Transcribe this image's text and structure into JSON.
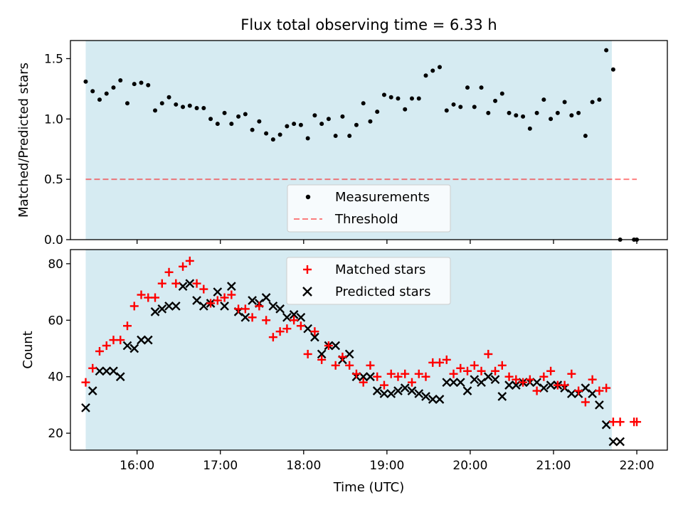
{
  "chart_data": [
    {
      "type": "scatter",
      "title": "Flux total observing time = 6.33 h",
      "xlabel": "",
      "ylabel": "Matched/Predicted stars",
      "xlim": [
        "15:12",
        "22:22"
      ],
      "ylim": [
        0,
        1.65
      ],
      "yticks": [
        "0.0",
        "0.5",
        "1.0",
        "1.5"
      ],
      "observing_window": [
        "15:23",
        "21:42"
      ],
      "colors": {
        "window": "#add8e6",
        "measurements": "#000000",
        "threshold": "#ff0000"
      },
      "legend": {
        "position": "lower center",
        "entries": [
          "Measurements",
          "Threshold"
        ]
      },
      "series": [
        {
          "name": "Measurements",
          "marker": "dot",
          "x": [
            "15:23",
            "15:28",
            "15:33",
            "15:38",
            "15:43",
            "15:48",
            "15:53",
            "15:58",
            "16:03",
            "16:08",
            "16:13",
            "16:18",
            "16:23",
            "16:28",
            "16:33",
            "16:38",
            "16:43",
            "16:48",
            "16:53",
            "16:58",
            "17:03",
            "17:08",
            "17:13",
            "17:18",
            "17:23",
            "17:28",
            "17:33",
            "17:38",
            "17:43",
            "17:48",
            "17:53",
            "17:58",
            "18:03",
            "18:08",
            "18:13",
            "18:18",
            "18:23",
            "18:28",
            "18:33",
            "18:38",
            "18:43",
            "18:48",
            "18:53",
            "18:58",
            "19:03",
            "19:08",
            "19:13",
            "19:18",
            "19:23",
            "19:28",
            "19:33",
            "19:38",
            "19:43",
            "19:48",
            "19:53",
            "19:58",
            "20:03",
            "20:08",
            "20:13",
            "20:18",
            "20:23",
            "20:28",
            "20:33",
            "20:38",
            "20:43",
            "20:48",
            "20:53",
            "20:58",
            "21:03",
            "21:08",
            "21:13",
            "21:18",
            "21:23",
            "21:28",
            "21:33",
            "21:38",
            "21:43",
            "21:48",
            "21:58",
            "22:00"
          ],
          "y": [
            1.31,
            1.23,
            1.16,
            1.21,
            1.26,
            1.32,
            1.13,
            1.29,
            1.3,
            1.28,
            1.07,
            1.13,
            1.18,
            1.12,
            1.1,
            1.11,
            1.09,
            1.09,
            1.0,
            0.96,
            1.05,
            0.96,
            1.02,
            1.04,
            0.91,
            0.98,
            0.88,
            0.83,
            0.87,
            0.94,
            0.96,
            0.95,
            0.84,
            1.03,
            0.96,
            1.0,
            0.86,
            1.02,
            0.86,
            0.95,
            1.13,
            0.98,
            1.06,
            1.2,
            1.18,
            1.17,
            1.08,
            1.17,
            1.17,
            1.36,
            1.4,
            1.43,
            1.07,
            1.12,
            1.1,
            1.26,
            1.1,
            1.26,
            1.05,
            1.15,
            1.21,
            1.05,
            1.03,
            1.02,
            0.92,
            1.05,
            1.16,
            1.0,
            1.05,
            1.14,
            1.03,
            1.05,
            0.86,
            1.14,
            1.16,
            1.57,
            1.41,
            0.0,
            0.0,
            0.0
          ]
        },
        {
          "name": "Threshold",
          "marker": "dashed-line",
          "x": [
            "15:23",
            "22:00"
          ],
          "y": [
            0.5,
            0.5
          ]
        }
      ]
    },
    {
      "type": "scatter",
      "title": "",
      "xlabel": "Time (UTC)",
      "ylabel": "Count",
      "xlim": [
        "15:12",
        "22:22"
      ],
      "ylim": [
        14,
        85
      ],
      "xticks": [
        "16:00",
        "17:00",
        "18:00",
        "19:00",
        "20:00",
        "21:00",
        "22:00"
      ],
      "yticks": [
        "20",
        "40",
        "60",
        "80"
      ],
      "observing_window": [
        "15:23",
        "21:42"
      ],
      "colors": {
        "window": "#add8e6",
        "matched": "#ff0000",
        "predicted": "#000000"
      },
      "legend": {
        "position": "upper center",
        "entries": [
          "Matched stars",
          "Predicted stars"
        ]
      },
      "series": [
        {
          "name": "Matched stars",
          "marker": "plus",
          "x": [
            "15:23",
            "15:28",
            "15:33",
            "15:38",
            "15:43",
            "15:48",
            "15:53",
            "15:58",
            "16:03",
            "16:08",
            "16:13",
            "16:18",
            "16:23",
            "16:28",
            "16:33",
            "16:38",
            "16:43",
            "16:48",
            "16:53",
            "16:58",
            "17:03",
            "17:08",
            "17:13",
            "17:18",
            "17:23",
            "17:28",
            "17:33",
            "17:38",
            "17:43",
            "17:48",
            "17:53",
            "17:58",
            "18:03",
            "18:08",
            "18:13",
            "18:18",
            "18:23",
            "18:28",
            "18:33",
            "18:38",
            "18:43",
            "18:48",
            "18:53",
            "18:58",
            "19:03",
            "19:08",
            "19:13",
            "19:18",
            "19:23",
            "19:28",
            "19:33",
            "19:38",
            "19:43",
            "19:48",
            "19:53",
            "19:58",
            "20:03",
            "20:08",
            "20:13",
            "20:18",
            "20:23",
            "20:28",
            "20:33",
            "20:38",
            "20:43",
            "20:48",
            "20:53",
            "20:58",
            "21:03",
            "21:08",
            "21:13",
            "21:18",
            "21:23",
            "21:28",
            "21:33",
            "21:38",
            "21:43",
            "21:48",
            "21:58",
            "22:00"
          ],
          "y": [
            38,
            43,
            49,
            51,
            53,
            53,
            58,
            65,
            69,
            68,
            68,
            73,
            77,
            73,
            79,
            81,
            73,
            71,
            66,
            67,
            68,
            69,
            64,
            64,
            61,
            65,
            60,
            54,
            56,
            57,
            60,
            58,
            48,
            56,
            46,
            51,
            44,
            47,
            44,
            41,
            38,
            44,
            40,
            37,
            41,
            40,
            41,
            38,
            41,
            40,
            45,
            45,
            46,
            41,
            43,
            42,
            44,
            42,
            48,
            42,
            44,
            40,
            39,
            38,
            39,
            35,
            40,
            42,
            37,
            37,
            41,
            35,
            31,
            39,
            35,
            36,
            24,
            24,
            24,
            24
          ]
        },
        {
          "name": "Predicted stars",
          "marker": "x",
          "x": [
            "15:23",
            "15:28",
            "15:33",
            "15:38",
            "15:43",
            "15:48",
            "15:53",
            "15:58",
            "16:03",
            "16:08",
            "16:13",
            "16:18",
            "16:23",
            "16:28",
            "16:33",
            "16:38",
            "16:43",
            "16:48",
            "16:53",
            "16:58",
            "17:03",
            "17:08",
            "17:13",
            "17:18",
            "17:23",
            "17:28",
            "17:33",
            "17:38",
            "17:43",
            "17:48",
            "17:53",
            "17:58",
            "18:03",
            "18:08",
            "18:13",
            "18:18",
            "18:23",
            "18:28",
            "18:33",
            "18:38",
            "18:43",
            "18:48",
            "18:53",
            "18:58",
            "19:03",
            "19:08",
            "19:13",
            "19:18",
            "19:23",
            "19:28",
            "19:33",
            "19:38",
            "19:43",
            "19:48",
            "19:53",
            "19:58",
            "20:03",
            "20:08",
            "20:13",
            "20:18",
            "20:23",
            "20:28",
            "20:33",
            "20:38",
            "20:43",
            "20:48",
            "20:53",
            "20:58",
            "21:03",
            "21:08",
            "21:13",
            "21:18",
            "21:23",
            "21:28",
            "21:33",
            "21:38",
            "21:43",
            "21:48"
          ],
          "y": [
            29,
            35,
            42,
            42,
            42,
            40,
            51,
            50,
            53,
            53,
            63,
            64,
            65,
            65,
            72,
            73,
            67,
            65,
            66,
            70,
            65,
            72,
            63,
            61,
            67,
            66,
            68,
            65,
            64,
            61,
            62,
            61,
            57,
            54,
            48,
            51,
            51,
            46,
            48,
            40,
            40,
            40,
            35,
            34,
            34,
            35,
            36,
            35,
            34,
            33,
            32,
            32,
            38,
            38,
            38,
            35,
            39,
            38,
            40,
            39,
            33,
            37,
            37,
            38,
            38,
            38,
            36,
            37,
            37,
            36,
            34,
            34,
            36,
            34,
            30,
            23,
            17,
            17
          ]
        }
      ]
    }
  ]
}
